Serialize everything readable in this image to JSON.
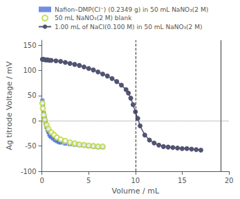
{
  "chart_data": {
    "type": "scatter",
    "xlabel": "Volume / mL",
    "ylabel": "Ag titrode Voltage / mV",
    "xlim": [
      0,
      20
    ],
    "ylim": [
      -100,
      160
    ],
    "xticks": [
      0,
      5,
      10,
      15,
      20
    ],
    "yticks": [
      -100,
      -50,
      0,
      50,
      100,
      150
    ],
    "grid": false,
    "legend": "top",
    "series": [
      {
        "name": "Nafion–DMP(Cl⁻) (0.2349 g) in 50 mL NaNO₃(2 M)",
        "type": "scatter",
        "marker": "square",
        "x": [
          0.05,
          0.1,
          0.2,
          0.3,
          0.4,
          0.5,
          0.6,
          0.7,
          0.8,
          0.9,
          1.0,
          1.2,
          1.4,
          1.6,
          1.8,
          2.0,
          2.5,
          3.0,
          3.5,
          4.0,
          4.5,
          5.0,
          5.5,
          6.0,
          6.5
        ],
        "values": [
          40,
          30,
          15,
          5,
          -5,
          -12,
          -18,
          -22,
          -27,
          -30,
          -32,
          -35,
          -38,
          -40,
          -42,
          -43,
          -45,
          -46,
          -47,
          -48,
          -49,
          -50,
          -51,
          -52,
          -52
        ]
      },
      {
        "name": "50 mL NaNO₃(2 M) blank",
        "type": "scatter",
        "marker": "open_circle",
        "x": [
          0.05,
          0.1,
          0.2,
          0.3,
          0.5,
          0.7,
          1.0,
          1.3,
          1.6,
          2.0,
          2.5,
          3.0,
          3.5,
          4.0,
          4.5,
          5.0,
          5.5,
          6.0,
          6.5
        ],
        "values": [
          35,
          25,
          12,
          2,
          -8,
          -16,
          -23,
          -28,
          -33,
          -37,
          -40,
          -43,
          -45,
          -47,
          -48,
          -49,
          -50,
          -51,
          -51
        ]
      },
      {
        "name": "1.00 mL of NaCl(0.100 M) in 50 mL NaNO₃(2 M)",
        "type": "line",
        "marker": "circle",
        "line_style": "solid",
        "x": [
          0.05,
          0.2,
          0.4,
          0.6,
          0.8,
          1.0,
          1.5,
          2.0,
          2.5,
          3.0,
          3.5,
          4.0,
          4.5,
          5.0,
          5.5,
          6.0,
          6.5,
          7.0,
          7.5,
          8.0,
          8.5,
          9.0,
          9.25,
          9.5,
          9.75,
          10.0,
          10.25,
          10.5,
          11.0,
          11.5,
          12.0,
          12.5,
          13.0,
          13.5,
          14.0,
          14.5,
          15.0,
          15.5,
          16.0,
          16.5,
          17.0
        ],
        "values": [
          122,
          122,
          121,
          121,
          120,
          120,
          119,
          118,
          116,
          114,
          112,
          110,
          107,
          104,
          101,
          97,
          93,
          89,
          84,
          78,
          71,
          62,
          55,
          45,
          32,
          18,
          5,
          -10,
          -28,
          -38,
          -44,
          -48,
          -51,
          -52,
          -53,
          -54,
          -55,
          -55,
          -56,
          -57,
          -58
        ]
      }
    ],
    "reference_lines": [
      {
        "axis": "y",
        "value": 0,
        "line_style": "dotted"
      },
      {
        "axis": "x",
        "value": 10.0,
        "line_style": "dashed"
      },
      {
        "axis": "x",
        "value": 19.1,
        "line_style": "solid"
      }
    ]
  }
}
